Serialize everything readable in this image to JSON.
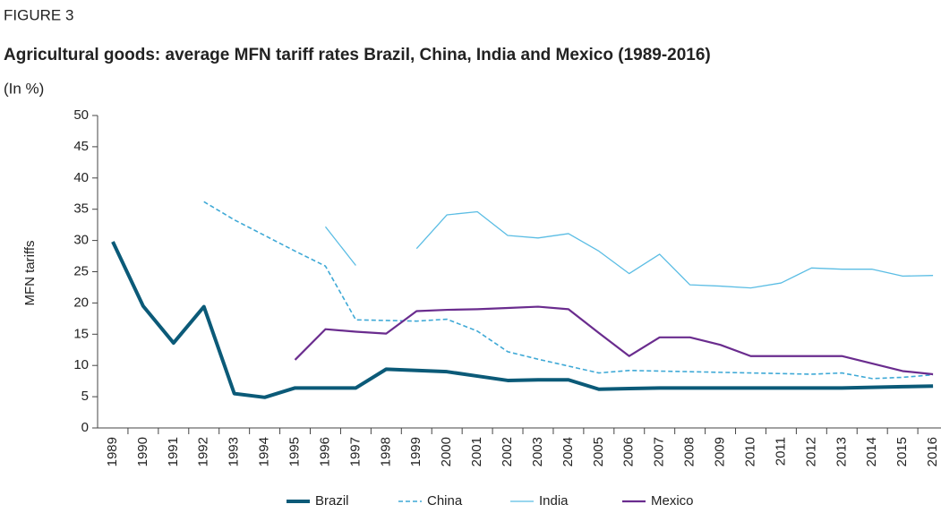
{
  "chart_data": {
    "type": "line",
    "figure_label": "FIGURE 3",
    "title": "Agricultural goods: average MFN tariff rates Brazil, China, India and Mexico (1989-2016)",
    "subtitle": "(In %)",
    "y_label": "MFN tariffs",
    "categories": [
      "1989",
      "1990",
      "1991",
      "1992",
      "1993",
      "1994",
      "1995",
      "1996",
      "1997",
      "1998",
      "1999",
      "2000",
      "2001",
      "2002",
      "2003",
      "2004",
      "2005",
      "2006",
      "2007",
      "2008",
      "2009",
      "2010",
      "2011",
      "2012",
      "2013",
      "2014",
      "2015",
      "2016"
    ],
    "series": [
      {
        "name": "Brazil",
        "color": "#0b5a78",
        "width": 4,
        "dash": false,
        "values": [
          29.8,
          19.5,
          13.6,
          19.4,
          5.5,
          4.9,
          6.4,
          6.4,
          6.4,
          9.4,
          9.2,
          9.0,
          8.3,
          7.6,
          7.7,
          7.7,
          6.2,
          6.3,
          6.4,
          6.4,
          6.4,
          6.4,
          6.4,
          6.4,
          6.4,
          6.5,
          6.6,
          6.7
        ]
      },
      {
        "name": "China",
        "color": "#3fa9d6",
        "width": 1.6,
        "dash": true,
        "values": [
          null,
          null,
          null,
          36.2,
          33.3,
          30.8,
          28.3,
          25.9,
          17.3,
          17.2,
          17.1,
          17.4,
          15.5,
          12.2,
          11.0,
          9.9,
          8.8,
          9.2,
          9.1,
          9.0,
          8.9,
          8.8,
          8.7,
          8.6,
          8.8,
          7.9,
          8.1,
          8.5
        ]
      },
      {
        "name": "India",
        "color": "#5bbde4",
        "width": 1.3,
        "dash": false,
        "values": [
          null,
          null,
          null,
          null,
          null,
          null,
          null,
          32.2,
          26.0,
          null,
          28.7,
          34.1,
          34.6,
          30.8,
          30.4,
          31.1,
          28.3,
          24.7,
          27.8,
          22.9,
          22.7,
          22.4,
          23.2,
          25.6,
          25.4,
          25.4,
          24.3,
          24.4
        ]
      },
      {
        "name": "Mexico",
        "color": "#6a2c8e",
        "width": 2.2,
        "dash": false,
        "values": [
          null,
          null,
          null,
          null,
          null,
          null,
          10.9,
          15.8,
          15.4,
          15.1,
          18.7,
          18.9,
          19.0,
          19.2,
          19.4,
          19.0,
          15.2,
          11.5,
          14.5,
          14.5,
          13.3,
          11.5,
          11.5,
          11.5,
          11.5,
          10.3,
          9.1,
          8.6
        ]
      }
    ],
    "ylim": [
      0,
      50
    ],
    "yticks": [
      0,
      5,
      10,
      15,
      20,
      25,
      30,
      35,
      40,
      45,
      50
    ],
    "grid": false,
    "legend": "bottom"
  }
}
